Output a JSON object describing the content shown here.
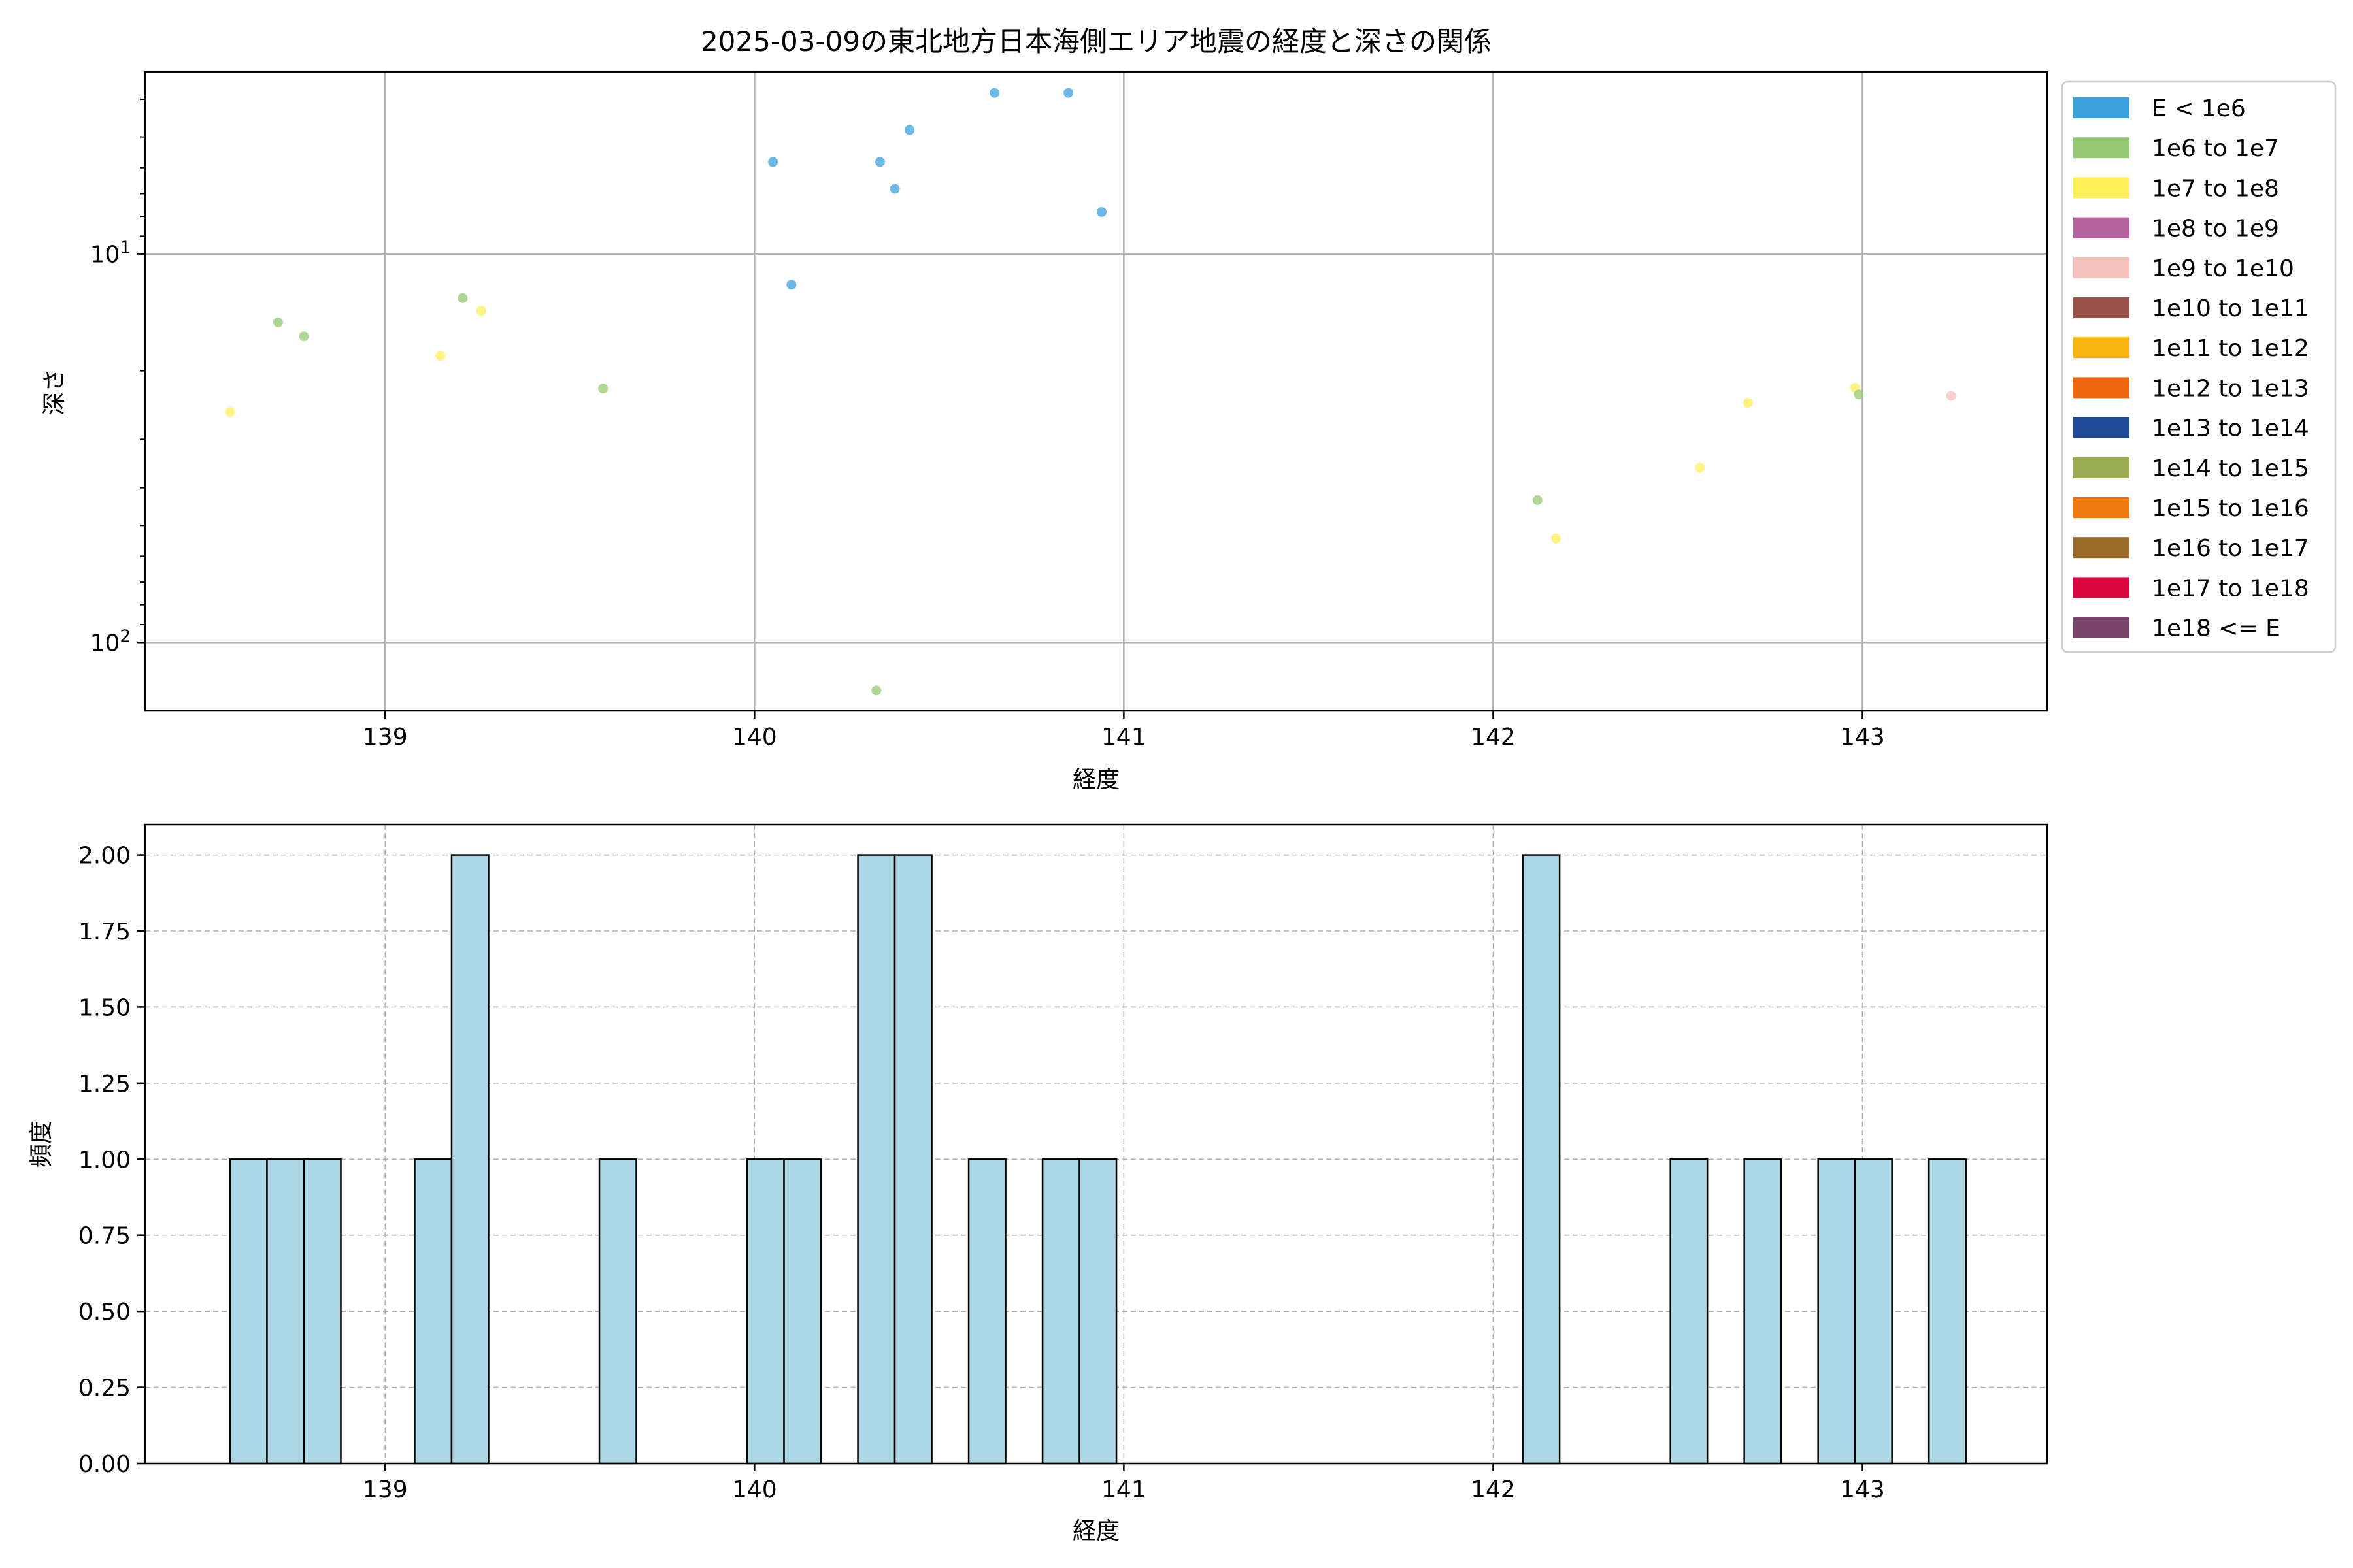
{
  "figure": {
    "title": "2025-03-09の東北地方日本海側エリア地震の経度と深さの関係"
  },
  "colors": {
    "hist_fill": "#add8e6",
    "hist_edge": "#000000",
    "grid_major": "#b0b0b0",
    "grid_dashed": "#b0b0b0"
  },
  "chart_data": [
    {
      "type": "scatter",
      "title": "2025-03-09の東北地方日本海側エリア地震の経度と深さの関係",
      "xlabel": "経度",
      "ylabel": "深さ",
      "xlim": [
        138.35,
        143.5
      ],
      "ylim_log": [
        150,
        3.4
      ],
      "y_scale": "log",
      "y_inverted": true,
      "x_ticks": [
        139,
        140,
        141,
        142,
        143
      ],
      "y_ticks": [
        {
          "value": 10,
          "base": "10",
          "exp": "1"
        },
        {
          "value": 100,
          "base": "10",
          "exp": "2"
        }
      ],
      "grid": true,
      "legend": {
        "placement": "outside-right",
        "entries": [
          {
            "label": "E < 1e6",
            "color": "#3ba1dc"
          },
          {
            "label": "1e6 to 1e7",
            "color": "#93c872"
          },
          {
            "label": "1e7 to 1e8",
            "color": "#fff05a"
          },
          {
            "label": "1e8 to 1e9",
            "color": "#b5629f"
          },
          {
            "label": "1e9 to 1e10",
            "color": "#f5c2bb"
          },
          {
            "label": "1e10 to 1e11",
            "color": "#9a5348"
          },
          {
            "label": "1e11 to 1e12",
            "color": "#f8b50f"
          },
          {
            "label": "1e12 to 1e13",
            "color": "#ee660d"
          },
          {
            "label": "1e13 to 1e14",
            "color": "#1e4a95"
          },
          {
            "label": "1e14 to 1e15",
            "color": "#9cad51"
          },
          {
            "label": "1e15 to 1e16",
            "color": "#ef7b10"
          },
          {
            "label": "1e16 to 1e17",
            "color": "#976b2a"
          },
          {
            "label": "1e17 to 1e18",
            "color": "#dc063e"
          },
          {
            "label": "1e18 <= E",
            "color": "#7b426a"
          }
        ]
      },
      "points": [
        {
          "x": 138.58,
          "y": 25.5,
          "class": 2
        },
        {
          "x": 138.71,
          "y": 15.0,
          "class": 1
        },
        {
          "x": 138.78,
          "y": 16.3,
          "class": 1
        },
        {
          "x": 139.15,
          "y": 18.3,
          "class": 2
        },
        {
          "x": 139.21,
          "y": 13.0,
          "class": 1
        },
        {
          "x": 139.26,
          "y": 14.0,
          "class": 2
        },
        {
          "x": 139.59,
          "y": 22.2,
          "class": 1
        },
        {
          "x": 140.05,
          "y": 5.8,
          "class": 0
        },
        {
          "x": 140.1,
          "y": 12.0,
          "class": 0
        },
        {
          "x": 140.34,
          "y": 5.8,
          "class": 0
        },
        {
          "x": 140.38,
          "y": 6.8,
          "class": 0
        },
        {
          "x": 140.42,
          "y": 4.8,
          "class": 0
        },
        {
          "x": 140.33,
          "y": 133,
          "class": 1
        },
        {
          "x": 140.65,
          "y": 3.85,
          "class": 0
        },
        {
          "x": 140.85,
          "y": 3.85,
          "class": 0
        },
        {
          "x": 140.94,
          "y": 7.8,
          "class": 0
        },
        {
          "x": 142.12,
          "y": 43.0,
          "class": 1
        },
        {
          "x": 142.17,
          "y": 54.0,
          "class": 2
        },
        {
          "x": 142.56,
          "y": 35.5,
          "class": 2
        },
        {
          "x": 142.69,
          "y": 24.2,
          "class": 2
        },
        {
          "x": 142.98,
          "y": 22.1,
          "class": 2
        },
        {
          "x": 142.99,
          "y": 23.0,
          "class": 1
        },
        {
          "x": 143.24,
          "y": 23.2,
          "class": 4
        }
      ]
    },
    {
      "type": "bar",
      "xlabel": "経度",
      "ylabel": "頻度",
      "xlim": [
        138.35,
        143.5
      ],
      "ylim": [
        0,
        2.1
      ],
      "x_ticks": [
        139,
        140,
        141,
        142,
        143
      ],
      "y_ticks": [
        "0.00",
        "0.25",
        "0.50",
        "0.75",
        "1.00",
        "1.25",
        "1.50",
        "1.75",
        "2.00"
      ],
      "grid": "dashed",
      "bin_width": 0.1,
      "bins": [
        {
          "x0": 138.58,
          "count": 1
        },
        {
          "x0": 138.68,
          "count": 1
        },
        {
          "x0": 138.78,
          "count": 1
        },
        {
          "x0": 139.08,
          "count": 1
        },
        {
          "x0": 139.18,
          "count": 2
        },
        {
          "x0": 139.58,
          "count": 1
        },
        {
          "x0": 139.98,
          "count": 1
        },
        {
          "x0": 140.08,
          "count": 1
        },
        {
          "x0": 140.28,
          "count": 2
        },
        {
          "x0": 140.38,
          "count": 2
        },
        {
          "x0": 140.58,
          "count": 1
        },
        {
          "x0": 140.78,
          "count": 1
        },
        {
          "x0": 140.88,
          "count": 1
        },
        {
          "x0": 142.08,
          "count": 2
        },
        {
          "x0": 142.48,
          "count": 1
        },
        {
          "x0": 142.68,
          "count": 1
        },
        {
          "x0": 142.88,
          "count": 1
        },
        {
          "x0": 142.98,
          "count": 1
        },
        {
          "x0": 143.18,
          "count": 1
        }
      ]
    }
  ]
}
